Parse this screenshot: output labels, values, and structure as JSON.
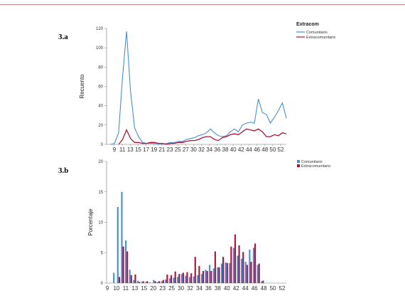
{
  "panels": {
    "a": {
      "label": "3.a"
    },
    "b": {
      "label": "3.b"
    }
  },
  "colors": {
    "comunitario": "#4a8fcf",
    "extracomunitario": "#b0123a"
  },
  "chart_data": [
    {
      "type": "line",
      "ylabel": "Recuento",
      "ylim": [
        0,
        120
      ],
      "yticks": [
        0,
        20,
        40,
        60,
        80,
        100,
        120
      ],
      "xlim": [
        8,
        53
      ],
      "xtick_labels": [
        "9",
        "11",
        "13",
        "15",
        "17",
        "19",
        "21",
        "23",
        "25",
        "27",
        "30",
        "32",
        "34",
        "36",
        "38",
        "40",
        "42",
        "44",
        "46",
        "48",
        "50",
        "52"
      ],
      "legend": {
        "title": "Extracom",
        "placement": "top-right"
      },
      "series": [
        {
          "name": "Comunitario",
          "color": "#4a8fcf",
          "x": [
            9,
            10,
            11,
            12,
            13,
            14,
            15,
            16,
            17,
            18,
            19,
            20,
            21,
            22,
            23,
            24,
            25,
            26,
            27,
            28,
            29,
            30,
            31,
            32,
            33,
            34,
            35,
            36,
            37,
            38,
            39,
            40,
            41,
            42,
            43,
            44,
            45,
            46,
            47,
            48,
            49,
            50,
            51,
            52,
            53
          ],
          "y": [
            0,
            1,
            12,
            70,
            117,
            55,
            17,
            8,
            2,
            1,
            1,
            1,
            0,
            0,
            1,
            2,
            2,
            3,
            3,
            5,
            6,
            7,
            9,
            10,
            12,
            16,
            12,
            9,
            8,
            9,
            13,
            16,
            13,
            20,
            22,
            23,
            22,
            47,
            33,
            31,
            22,
            28,
            35,
            43,
            27
          ]
        },
        {
          "name": "Extracomunitario",
          "color": "#b0123a",
          "x": [
            11,
            12,
            13,
            14,
            15,
            16,
            17,
            18,
            19,
            20,
            21,
            22,
            23,
            24,
            25,
            26,
            27,
            28,
            29,
            30,
            31,
            32,
            33,
            34,
            35,
            36,
            37,
            38,
            39,
            40,
            41,
            42,
            43,
            44,
            45,
            46,
            47,
            48,
            49,
            50,
            51,
            52,
            53
          ],
          "y": [
            0,
            5,
            15,
            6,
            2,
            2,
            1,
            1,
            2,
            2,
            1,
            1,
            0,
            1,
            1,
            2,
            2,
            3,
            4,
            4,
            5,
            7,
            8,
            8,
            5,
            4,
            7,
            8,
            10,
            11,
            10,
            13,
            16,
            15,
            14,
            16,
            13,
            8,
            8,
            10,
            9,
            12,
            11
          ]
        }
      ]
    },
    {
      "type": "bar",
      "ylabel": "Porcentaje",
      "ylim": [
        0,
        20
      ],
      "yticks": [
        0,
        5,
        10,
        15,
        20
      ],
      "xlim": [
        8,
        53
      ],
      "xtick_labels": [
        "9",
        "10",
        "11",
        "13",
        "15",
        "20",
        "23",
        "25",
        "30",
        "32",
        "34",
        "36",
        "38",
        "40",
        "42",
        "44",
        "46",
        "48",
        "50",
        "52"
      ],
      "legend": {
        "placement": "top-right"
      },
      "x": [
        9,
        10,
        11,
        12,
        13,
        14,
        15,
        16,
        17,
        18,
        19,
        20,
        21,
        22,
        23,
        24,
        25,
        26,
        27,
        28,
        29,
        30,
        31,
        32,
        33,
        34,
        35,
        36,
        37,
        38,
        39,
        40,
        41,
        42,
        43,
        44,
        45,
        46,
        47,
        48,
        49,
        50,
        51,
        52
      ],
      "series": [
        {
          "name": "Comunitario",
          "color": "#4a8fcf",
          "values": [
            0,
            1.7,
            12.5,
            15.0,
            7.0,
            2.2,
            0.5,
            0.4,
            0.2,
            0.2,
            0.1,
            0.5,
            0.2,
            0.3,
            0.6,
            0.8,
            0.9,
            1.0,
            1.5,
            1.2,
            1.0,
            1.1,
            1.3,
            1.5,
            2.2,
            3.0,
            2.4,
            2.6,
            3.2,
            3.4,
            3.3,
            5.8,
            4.5,
            4.0,
            3.5,
            5.5,
            5.8,
            3.0,
            0.3,
            0,
            0,
            0,
            0,
            0
          ]
        },
        {
          "name": "Extracomunitario",
          "color": "#b0123a",
          "values": [
            0,
            0,
            1.0,
            6.0,
            5.2,
            1.3,
            1.4,
            0.2,
            0.3,
            0.3,
            0,
            0.3,
            0.3,
            0.5,
            1.4,
            1.3,
            1.9,
            1.5,
            1.7,
            1.8,
            1.6,
            4.3,
            2.8,
            2.0,
            2.0,
            2.0,
            5.2,
            2.6,
            4.3,
            3.3,
            6.0,
            8.0,
            6.2,
            5.1,
            3.0,
            3.5,
            6.5,
            3.2,
            0.4,
            0,
            0,
            0,
            0,
            0
          ]
        }
      ]
    }
  ]
}
